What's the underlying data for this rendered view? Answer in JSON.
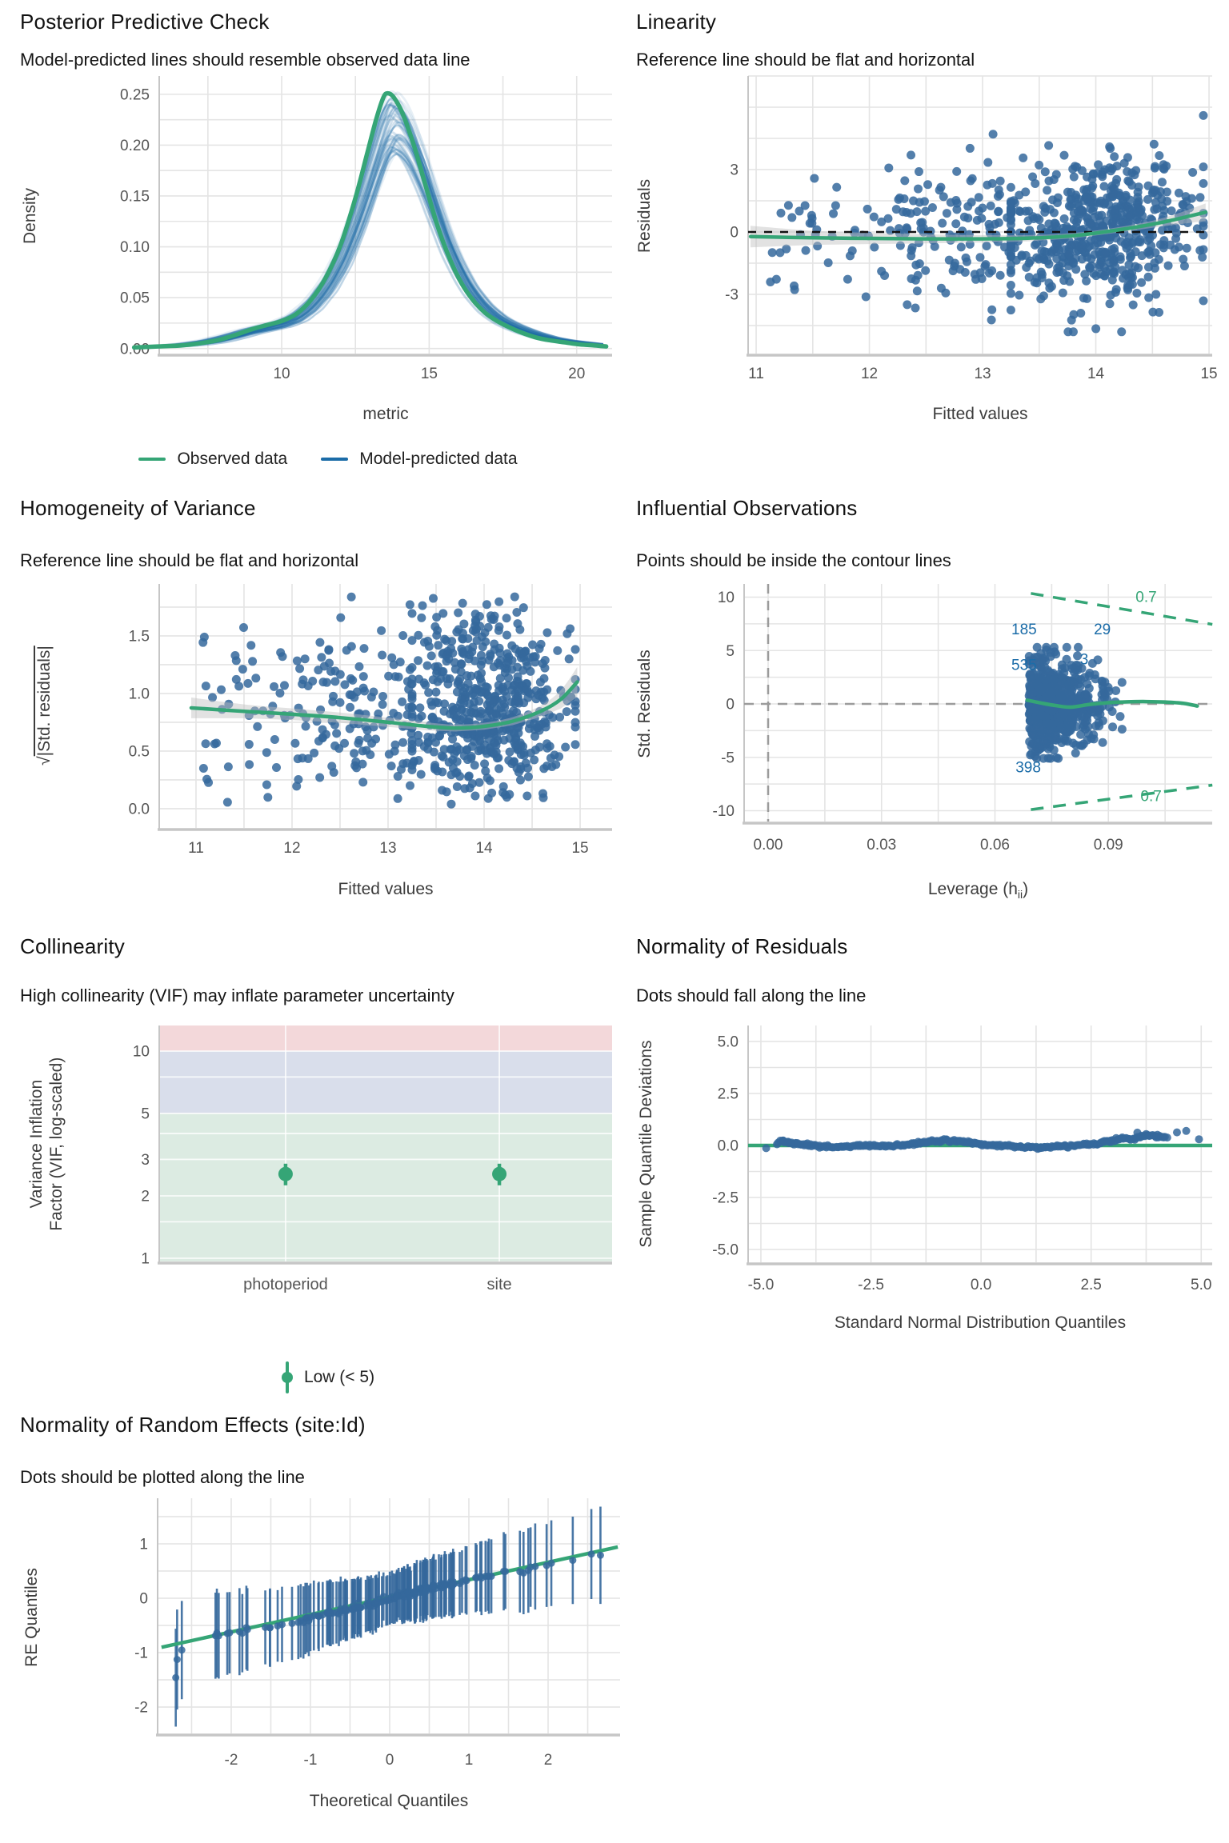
{
  "colors": {
    "green": "#35a576",
    "blue": "#1b6ca8",
    "point_blue": "#35689c",
    "annotation_blue": "#1b6ca8",
    "grid": "#e4e4e4",
    "axis": "#c6c6c6",
    "tick_text": "#555555",
    "label_text": "#3c3c3c",
    "dash_grey": "#9b9b9b",
    "dash_black": "#111111",
    "ribbon_grey": "#bfbfbf",
    "band_red": "#f3d8da",
    "band_blue": "#d9deeb",
    "band_green": "#dcebe2"
  },
  "panels": {
    "ppc": {
      "title": "Posterior Predictive Check",
      "subtitle": "Model-predicted lines should resemble observed data line",
      "xlabel": "metric",
      "ylabel": "Density",
      "legend": [
        {
          "label": "Observed data",
          "color": "#35a576",
          "glyph": "line"
        },
        {
          "label": "Model-predicted data",
          "color": "#1b6ca8",
          "glyph": "line"
        }
      ]
    },
    "lin": {
      "title": "Linearity",
      "subtitle": "Reference line should be flat and horizontal",
      "xlabel": "Fitted values",
      "ylabel": "Residuals"
    },
    "hom": {
      "title": "Homogeneity of Variance",
      "subtitle": "Reference line should be flat and horizontal",
      "xlabel": "Fitted values",
      "ylabel_sqrt_of": "|Std. residuals|"
    },
    "inf": {
      "title": "Influential Observations",
      "subtitle": "Points should be inside the contour lines",
      "xlabel_parts": {
        "pre": "Leverage (h",
        "sub": "ii",
        "post": ")"
      },
      "ylabel": "Std. Residuals"
    },
    "vif": {
      "title": "Collinearity",
      "subtitle": "High collinearity (VIF) may inflate parameter uncertainty",
      "ylabel_lines": [
        "Variance Inflation",
        "Factor (VIF, log-scaled)"
      ],
      "legend": [
        {
          "label": "Low (< 5)",
          "color": "#35a576",
          "glyph": "pointrange"
        }
      ]
    },
    "nor": {
      "title": "Normality of Residuals",
      "subtitle": "Dots should fall along the line",
      "xlabel": "Standard Normal Distribution Quantiles",
      "ylabel": "Sample Quantile Deviations"
    },
    "re": {
      "title": "Normality of Random Effects (site:Id)",
      "subtitle": "Dots should be plotted along the line",
      "xlabel": "Theoretical Quantiles",
      "ylabel": "RE Quantiles"
    }
  },
  "chart_data": [
    {
      "panel": "ppc",
      "type": "line",
      "xlim": [
        5.85,
        21.2
      ],
      "ylim": [
        -0.005,
        0.268
      ],
      "xticks": {
        "values": [
          10,
          15,
          20
        ],
        "labels": [
          "10",
          "15",
          "20"
        ]
      },
      "yticks": {
        "values": [
          0,
          0.05,
          0.1,
          0.15,
          0.2,
          0.25
        ],
        "labels": [
          "0.00",
          "0.05",
          "0.10",
          "0.15",
          "0.20",
          "0.25"
        ]
      },
      "grid_step_x": 2.5,
      "grid_step_y": 0.025,
      "observed_density": [
        [
          5.0,
          0.001
        ],
        [
          5.8,
          0.002
        ],
        [
          6.6,
          0.003
        ],
        [
          7.2,
          0.005
        ],
        [
          7.8,
          0.008
        ],
        [
          8.4,
          0.013
        ],
        [
          9.0,
          0.019
        ],
        [
          9.5,
          0.023
        ],
        [
          10.0,
          0.027
        ],
        [
          10.5,
          0.034
        ],
        [
          11.0,
          0.048
        ],
        [
          11.5,
          0.07
        ],
        [
          12.0,
          0.102
        ],
        [
          12.5,
          0.148
        ],
        [
          12.9,
          0.192
        ],
        [
          13.2,
          0.225
        ],
        [
          13.45,
          0.247
        ],
        [
          13.6,
          0.251
        ],
        [
          13.8,
          0.247
        ],
        [
          14.1,
          0.231
        ],
        [
          14.5,
          0.198
        ],
        [
          14.9,
          0.158
        ],
        [
          15.3,
          0.119
        ],
        [
          15.7,
          0.088
        ],
        [
          16.1,
          0.064
        ],
        [
          16.5,
          0.047
        ],
        [
          16.9,
          0.035
        ],
        [
          17.3,
          0.027
        ],
        [
          17.7,
          0.021
        ],
        [
          18.1,
          0.016
        ],
        [
          18.6,
          0.011
        ],
        [
          19.1,
          0.008
        ],
        [
          19.6,
          0.006
        ],
        [
          20.1,
          0.004
        ],
        [
          20.6,
          0.003
        ],
        [
          21.0,
          0.002
        ]
      ],
      "simulations": {
        "count": 60,
        "strong": 14,
        "seed": 5,
        "shift": [
          0.0,
          0.4
        ],
        "amplitude": [
          0.76,
          1.01
        ],
        "width": [
          0.98,
          1.14
        ]
      }
    },
    {
      "panel": "lin",
      "type": "scatter",
      "xlim": [
        10.929,
        15.028
      ],
      "ylim": [
        -5.846,
        7.5
      ],
      "xticks": {
        "values": [
          11,
          12,
          13,
          14,
          15
        ],
        "labels": [
          "11",
          "12",
          "13",
          "14",
          "15"
        ]
      },
      "yticks": {
        "values": [
          -3,
          0,
          3
        ],
        "labels": [
          "-3",
          "0",
          "3"
        ]
      },
      "grid_step_x": 0.5,
      "grid_step_y": 1.5,
      "points": {
        "seed": 11,
        "n": 760,
        "x_mix": [
          {
            "type": "uniform",
            "a": 11.05,
            "b": 12.25,
            "w": 0.07
          },
          {
            "type": "uniform",
            "a": 12.25,
            "b": 13.25,
            "w": 0.16
          },
          {
            "type": "normal",
            "mu": 14.0,
            "sd": 0.42,
            "clip": [
              13.25,
              14.95
            ],
            "w": 0.77
          }
        ],
        "y_base": {
          "mu": -0.05,
          "sd": 1.6
        },
        "y_trend": {
          "start": 13.8,
          "slope": 0.55
        },
        "y_clip": [
          -4.8,
          5.6
        ]
      },
      "zero_line": 0,
      "smooth": [
        [
          10.95,
          -0.22
        ],
        [
          11.5,
          -0.28
        ],
        [
          12.0,
          -0.31
        ],
        [
          12.5,
          -0.33
        ],
        [
          13.0,
          -0.33
        ],
        [
          13.4,
          -0.3
        ],
        [
          13.8,
          -0.18
        ],
        [
          14.2,
          0.1
        ],
        [
          14.6,
          0.48
        ],
        [
          14.97,
          0.95
        ]
      ],
      "ribbon_hw": [
        0.52,
        0.34,
        0.27,
        0.22,
        0.18,
        0.15,
        0.13,
        0.13,
        0.2,
        0.42
      ]
    },
    {
      "panel": "hom",
      "type": "scatter",
      "xlim": [
        10.617,
        15.333
      ],
      "ylim": [
        -0.167,
        1.951
      ],
      "xticks": {
        "values": [
          11,
          12,
          13,
          14,
          15
        ],
        "labels": [
          "11",
          "12",
          "13",
          "14",
          "15"
        ]
      },
      "yticks": {
        "values": [
          0,
          0.5,
          1.0,
          1.5
        ],
        "labels": [
          "0.0",
          "0.5",
          "1.0",
          "1.5"
        ]
      },
      "grid_step_x": 0.5,
      "grid_step_y": 0.25,
      "points": {
        "seed": 23,
        "n": 750,
        "x_mix": [
          {
            "type": "uniform",
            "a": 11.05,
            "b": 12.25,
            "w": 0.07
          },
          {
            "type": "uniform",
            "a": 12.25,
            "b": 13.25,
            "w": 0.16
          },
          {
            "type": "normal",
            "mu": 14.0,
            "sd": 0.42,
            "clip": [
              13.25,
              14.95
            ],
            "w": 0.77
          }
        ],
        "y_sqrt_abs_sd": 1.15,
        "y_clip": [
          0.04,
          1.87
        ]
      },
      "smooth": [
        [
          10.95,
          0.875
        ],
        [
          11.5,
          0.845
        ],
        [
          12.0,
          0.82
        ],
        [
          12.5,
          0.79
        ],
        [
          13.0,
          0.75
        ],
        [
          13.4,
          0.715
        ],
        [
          13.7,
          0.7
        ],
        [
          14.0,
          0.715
        ],
        [
          14.3,
          0.76
        ],
        [
          14.6,
          0.85
        ],
        [
          14.8,
          0.95
        ],
        [
          14.97,
          1.1
        ]
      ],
      "ribbon_hw": [
        0.09,
        0.06,
        0.05,
        0.045,
        0.04,
        0.035,
        0.03,
        0.03,
        0.035,
        0.05,
        0.08,
        0.13
      ]
    },
    {
      "panel": "inf",
      "type": "scatter",
      "xlim": [
        -0.00635,
        0.11746
      ],
      "ylim": [
        -11.011,
        11.236
      ],
      "xticks": {
        "values": [
          0,
          0.03,
          0.06,
          0.09
        ],
        "labels": [
          "0.00",
          "0.03",
          "0.06",
          "0.09"
        ]
      },
      "yticks": {
        "values": [
          -10,
          -5,
          0,
          5,
          10
        ],
        "labels": [
          "-10",
          "-5",
          "0",
          "5",
          "10"
        ]
      },
      "grid_step_x": 0.015,
      "grid_step_y": 2.5,
      "ref_vline": 0,
      "ref_hline": 0,
      "points": {
        "seed": 37,
        "n": 800,
        "x_base": 0.069,
        "x_sd": 0.0085,
        "x_max": 0.1155,
        "y_sd": 2.0,
        "y_clip": [
          -5.1,
          5.3
        ]
      },
      "smooth": [
        [
          0.0685,
          0.35
        ],
        [
          0.072,
          0.1
        ],
        [
          0.076,
          -0.15
        ],
        [
          0.08,
          -0.3
        ],
        [
          0.085,
          -0.05
        ],
        [
          0.09,
          0.12
        ],
        [
          0.095,
          0.2
        ],
        [
          0.1,
          0.22
        ],
        [
          0.105,
          0.18
        ],
        [
          0.11,
          0.05
        ],
        [
          0.1135,
          -0.2
        ]
      ],
      "contours": [
        {
          "x1": 0.0695,
          "y1": 10.35,
          "x2": 0.1175,
          "y2": 7.45,
          "label": "0.7",
          "lx": 0.1,
          "ly": 9.55
        },
        {
          "x1": 0.0695,
          "y1": -9.9,
          "x2": 0.1175,
          "y2": -7.6,
          "label": "0.7",
          "lx": 0.1013,
          "ly": -9.1
        }
      ],
      "point_labels": [
        {
          "text": "185",
          "x": 0.0677,
          "y": 6.5
        },
        {
          "text": "29",
          "x": 0.0884,
          "y": 6.5
        },
        {
          "text": "535",
          "x": 0.0677,
          "y": 3.2
        },
        {
          "text": "3",
          "x": 0.0836,
          "y": 3.7
        },
        {
          "text": "398",
          "x": 0.0688,
          "y": -6.4
        }
      ]
    },
    {
      "panel": "vif",
      "type": "pointrange",
      "ylog": true,
      "ylim": [
        0.965,
        13.29
      ],
      "yticks": {
        "values": [
          1,
          2,
          3,
          5,
          10
        ],
        "labels": [
          "1",
          "2",
          "3",
          "5",
          "10"
        ]
      },
      "grid_y": [
        1,
        1.5,
        2,
        3,
        4,
        5,
        7.5,
        10
      ],
      "bands": [
        {
          "from": 10,
          "to": 13.29,
          "color": "#f3d8da"
        },
        {
          "from": 5,
          "to": 10,
          "color": "#d9deeb"
        },
        {
          "from": 0.965,
          "to": 5,
          "color": "#dcebe2"
        }
      ],
      "categories": [
        {
          "label": "photoperiod",
          "fx": 0.279,
          "vif": 2.55,
          "ci": [
            2.25,
            2.86
          ]
        },
        {
          "label": "site",
          "fx": 0.751,
          "vif": 2.55,
          "ci": [
            2.25,
            2.86
          ]
        }
      ]
    },
    {
      "panel": "nor",
      "type": "scatter",
      "xlim": [
        -5.29,
        5.25
      ],
      "ylim": [
        -5.615,
        5.769
      ],
      "xticks": {
        "values": [
          -5,
          -2.5,
          0,
          2.5,
          5
        ],
        "labels": [
          "-5.0",
          "-2.5",
          "0.0",
          "2.5",
          "5.0"
        ]
      },
      "yticks": {
        "values": [
          -5,
          -2.5,
          0,
          2.5,
          5
        ],
        "labels": [
          "-5.0",
          "-2.5",
          "0.0",
          "2.5",
          "5.0"
        ]
      },
      "grid_step_x": 1.25,
      "grid_step_y": 1.25,
      "ref_line_y": 0,
      "band": {
        "seed": 51,
        "n": 295,
        "x_from": -4.62,
        "x_to": 4.22,
        "jitter": 0.03,
        "waypoints": [
          [
            -5.29,
            -0.05
          ],
          [
            -4.88,
            -0.12
          ],
          [
            -4.55,
            0.2
          ],
          [
            -4.3,
            0.12
          ],
          [
            -3.9,
            0.0
          ],
          [
            -3.4,
            -0.06
          ],
          [
            -2.9,
            -0.03
          ],
          [
            -2.4,
            0.0
          ],
          [
            -2.0,
            -0.03
          ],
          [
            -1.6,
            0.05
          ],
          [
            -1.2,
            0.18
          ],
          [
            -0.8,
            0.26
          ],
          [
            -0.45,
            0.2
          ],
          [
            -0.1,
            0.08
          ],
          [
            0.3,
            0.0
          ],
          [
            0.8,
            -0.07
          ],
          [
            1.3,
            -0.1
          ],
          [
            1.8,
            -0.05
          ],
          [
            2.2,
            0.0
          ],
          [
            2.6,
            0.08
          ],
          [
            2.9,
            0.22
          ],
          [
            3.2,
            0.35
          ],
          [
            3.45,
            0.3
          ],
          [
            3.7,
            0.5
          ],
          [
            3.95,
            0.45
          ],
          [
            4.2,
            0.38
          ]
        ]
      },
      "outliers": [
        [
          -4.88,
          -0.13
        ],
        [
          -4.5,
          0.22
        ],
        [
          -4.38,
          0.18
        ],
        [
          3.55,
          0.62
        ],
        [
          3.75,
          0.55
        ],
        [
          4.45,
          0.63
        ],
        [
          4.66,
          0.7
        ],
        [
          4.95,
          0.3
        ]
      ]
    },
    {
      "panel": "re",
      "type": "pointrange-qq",
      "xlim": [
        -2.929,
        2.909
      ],
      "ylim": [
        -2.485,
        1.838
      ],
      "xticks": {
        "values": [
          -2,
          -1,
          0,
          1,
          2
        ],
        "labels": [
          "-2",
          "-1",
          "0",
          "1",
          "2"
        ]
      },
      "yticks": {
        "values": [
          -2,
          -1,
          0,
          1
        ],
        "labels": [
          "-2",
          "-1",
          "0",
          "1"
        ]
      },
      "grid_step_x": 0.5,
      "grid_step_y": 0.5,
      "line": {
        "slope": 0.32,
        "intercept": 0.02,
        "x_from": -2.88,
        "x_to": 2.88
      },
      "points": {
        "seed": 67,
        "n": 168,
        "slope": 0.32,
        "dev_waypoints": [
          [
            -2.93,
            -0.5
          ],
          [
            -2.55,
            -0.08
          ],
          [
            -2.3,
            0.02
          ],
          [
            -2.0,
            0.0
          ],
          [
            -1.5,
            -0.04
          ],
          [
            -1.0,
            -0.06
          ],
          [
            -0.5,
            -0.03
          ],
          [
            0,
            0.0
          ],
          [
            0.5,
            0.02
          ],
          [
            1.0,
            0.02
          ],
          [
            1.5,
            0.0
          ],
          [
            2.0,
            -0.02
          ],
          [
            2.4,
            -0.03
          ],
          [
            2.75,
            -0.05
          ]
        ],
        "dev_jitter": 0.025,
        "bar_base": 0.42,
        "bar_slope": 0.16,
        "bar_jitter": 0.08,
        "first_point": {
          "x": -2.7,
          "y": -1.46,
          "bar": 0.9
        }
      }
    }
  ]
}
